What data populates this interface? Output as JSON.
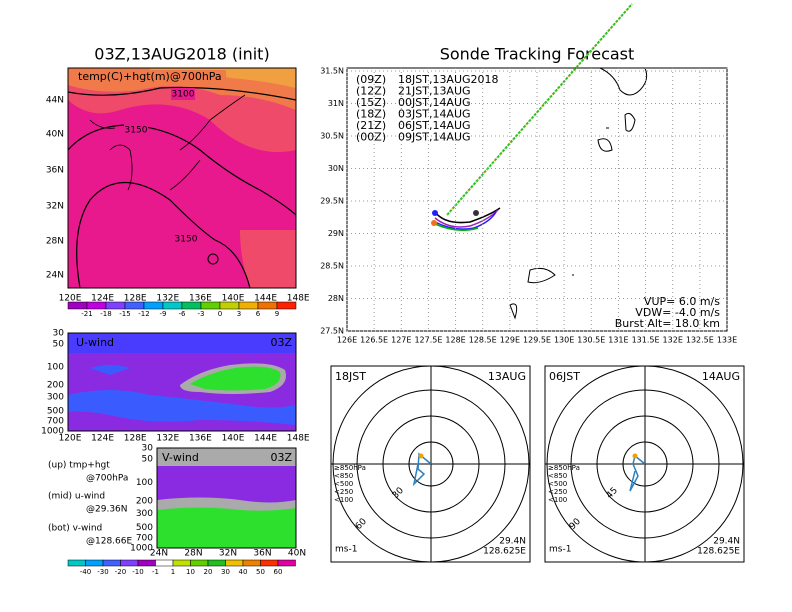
{
  "map_panel": {
    "title": "03Z,13AUG2018 (init)",
    "label": "temp(C)+hgt(m)@700hPa",
    "contour_labels": [
      "3100",
      "3150",
      "3150"
    ],
    "lat_labels": [
      "44N",
      "40N",
      "36N",
      "32N",
      "28N",
      "24N"
    ],
    "lon_labels": [
      "120E",
      "124E",
      "128E",
      "132E",
      "136E",
      "140E",
      "144E",
      "148E"
    ],
    "colorbar_labels": [
      "-21",
      "-18",
      "-15",
      "-12",
      "-9",
      "-6",
      "-3",
      "0",
      "3",
      "6",
      "9"
    ]
  },
  "u_panel": {
    "label": "U-wind",
    "time": "03Z",
    "pressure_labels": [
      "30",
      "50",
      "100",
      "200",
      "300",
      "500",
      "700",
      "1000"
    ],
    "lon_labels": [
      "120E",
      "124E",
      "128E",
      "132E",
      "136E",
      "140E",
      "144E",
      "148E"
    ]
  },
  "v_panel": {
    "label": "V-wind",
    "time": "03Z",
    "pressure_labels": [
      "30",
      "50",
      "100",
      "200",
      "300",
      "500",
      "700",
      "1000"
    ],
    "lat_labels": [
      "24N",
      "28N",
      "32N",
      "36N",
      "40N"
    ]
  },
  "notes": [
    "(up) tmp+hgt",
    "@700hPa",
    "(mid) u-wind",
    "@29.36N",
    "(bot) v-wind",
    "@128.66E"
  ],
  "wind_colorbar_labels": [
    "-40",
    "-30",
    "-20",
    "-10",
    "-1",
    "1",
    "10",
    "20",
    "30",
    "40",
    "50",
    "60"
  ],
  "track_panel": {
    "title": "Sonde Tracking Forecast",
    "legend": [
      {
        "code": "(09Z)",
        "time": "18JST,13AUG2018",
        "color": "#000000"
      },
      {
        "code": "(12Z)",
        "time": "21JST,13AUG",
        "color": "#a020c0"
      },
      {
        "code": "(15Z)",
        "time": "00JST,14AUG",
        "color": "#2020ff"
      },
      {
        "code": "(18Z)",
        "time": "03JST,14AUG",
        "color": "#00b000"
      },
      {
        "code": "(21Z)",
        "time": "06JST,14AUG",
        "color": "#f0b030"
      },
      {
        "code": "(00Z)",
        "time": "09JST,14AUG",
        "color": "#f07020"
      }
    ],
    "lat_labels": [
      "31.5N",
      "31N",
      "30.5N",
      "30N",
      "29.5N",
      "29N",
      "28.5N",
      "28N",
      "27.5N"
    ],
    "lon_labels": [
      "126E",
      "126.5E",
      "127E",
      "127.5E",
      "128E",
      "128.5E",
      "129E",
      "129.5E",
      "130E",
      "130.5E",
      "131E",
      "131.5E",
      "132E",
      "132.5E",
      "133E"
    ],
    "params": [
      "VUP= 6.0 m/s",
      "VDW= -4.0 m/s",
      "Burst Alt= 18.0 km"
    ]
  },
  "hodographs": [
    {
      "time": "18JST",
      "date": "13AUG",
      "lat": "29.4N",
      "lon": "128.625E",
      "unit": "ms-1",
      "ring_labels": [
        "30",
        "60"
      ],
      "levels": [
        {
          "label": "≥850hPa",
          "color": "#ff2020"
        },
        {
          "label": "<850",
          "color": "#f0a000"
        },
        {
          "label": "<500",
          "color": "#20c020"
        },
        {
          "label": "<250",
          "color": "#00c0c0"
        },
        {
          "label": "<100",
          "color": "#2020ff"
        }
      ]
    },
    {
      "time": "06JST",
      "date": "14AUG",
      "lat": "29.4N",
      "lon": "128.625E",
      "unit": "ms-1",
      "ring_labels": [
        "45",
        "90"
      ],
      "levels": [
        {
          "label": "≥850hPa",
          "color": "#ff2020"
        },
        {
          "label": "<850",
          "color": "#f0a000"
        },
        {
          "label": "<500",
          "color": "#20c020"
        },
        {
          "label": "<250",
          "color": "#00c0c0"
        },
        {
          "label": "<100",
          "color": "#2020ff"
        }
      ]
    }
  ]
}
